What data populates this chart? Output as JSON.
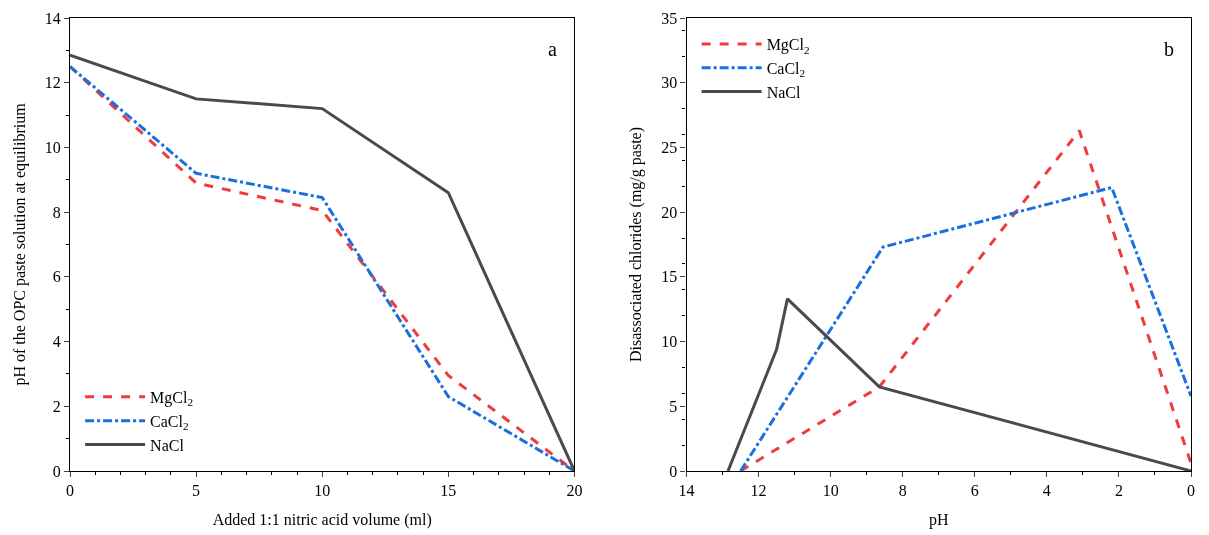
{
  "chart_data": [
    {
      "type": "line",
      "xlabel": "Added 1:1 nitric acid volume (ml)",
      "ylabel": "pH of the OPC paste solution at equilibrium",
      "annotations": [
        "a"
      ],
      "xlim": [
        0,
        20
      ],
      "xticks": [
        0,
        5,
        10,
        15,
        20
      ],
      "ylim": [
        0,
        14
      ],
      "yticks": [
        0,
        2,
        4,
        6,
        8,
        10,
        12,
        14
      ],
      "legend": "bottom left",
      "series": [
        {
          "name": "MgCl$_{2}$",
          "color": "#ef3b3b",
          "line_style": "dashed",
          "x": [
            0,
            5,
            10,
            15,
            20
          ],
          "values": [
            12.5,
            8.9,
            8.05,
            2.95,
            0
          ]
        },
        {
          "name": "CaCl$_{2}$",
          "color": "#1a6fe0",
          "line_style": "dashdot",
          "x": [
            0,
            5,
            10,
            15,
            20
          ],
          "values": [
            12.5,
            9.2,
            8.45,
            2.3,
            0
          ]
        },
        {
          "name": "NaCl",
          "color": "#4a4a4a",
          "line_style": "solid",
          "x": [
            0,
            5,
            10,
            15,
            20
          ],
          "values": [
            12.85,
            11.5,
            11.2,
            8.6,
            0
          ]
        }
      ]
    },
    {
      "type": "line",
      "xlabel": "pH",
      "ylabel": "Disassociated chlorides (mg/g paste)",
      "annotations": [
        "b"
      ],
      "xlim": [
        14,
        0
      ],
      "xticks": [
        14,
        12,
        10,
        8,
        6,
        4,
        2,
        0
      ],
      "ylim": [
        0,
        35
      ],
      "yticks": [
        0,
        5,
        10,
        15,
        20,
        25,
        30,
        35
      ],
      "legend": "top left",
      "series": [
        {
          "name": "MgCl$_{2}$",
          "color": "#ef3b3b",
          "line_style": "dashed",
          "x": [
            12.5,
            8.65,
            3.1,
            0
          ],
          "values": [
            0,
            6.5,
            26.3,
            0.6
          ]
        },
        {
          "name": "CaCl$_{2}$",
          "color": "#1a6fe0",
          "line_style": "dashdot",
          "x": [
            12.5,
            8.55,
            2.2,
            0
          ],
          "values": [
            0,
            17.3,
            21.9,
            5.8
          ]
        },
        {
          "name": "NaCl",
          "color": "#4a4a4a",
          "line_style": "solid",
          "x": [
            12.85,
            11.5,
            11.2,
            8.65,
            0
          ],
          "values": [
            0,
            9.4,
            13.3,
            6.5,
            0
          ]
        }
      ]
    }
  ]
}
